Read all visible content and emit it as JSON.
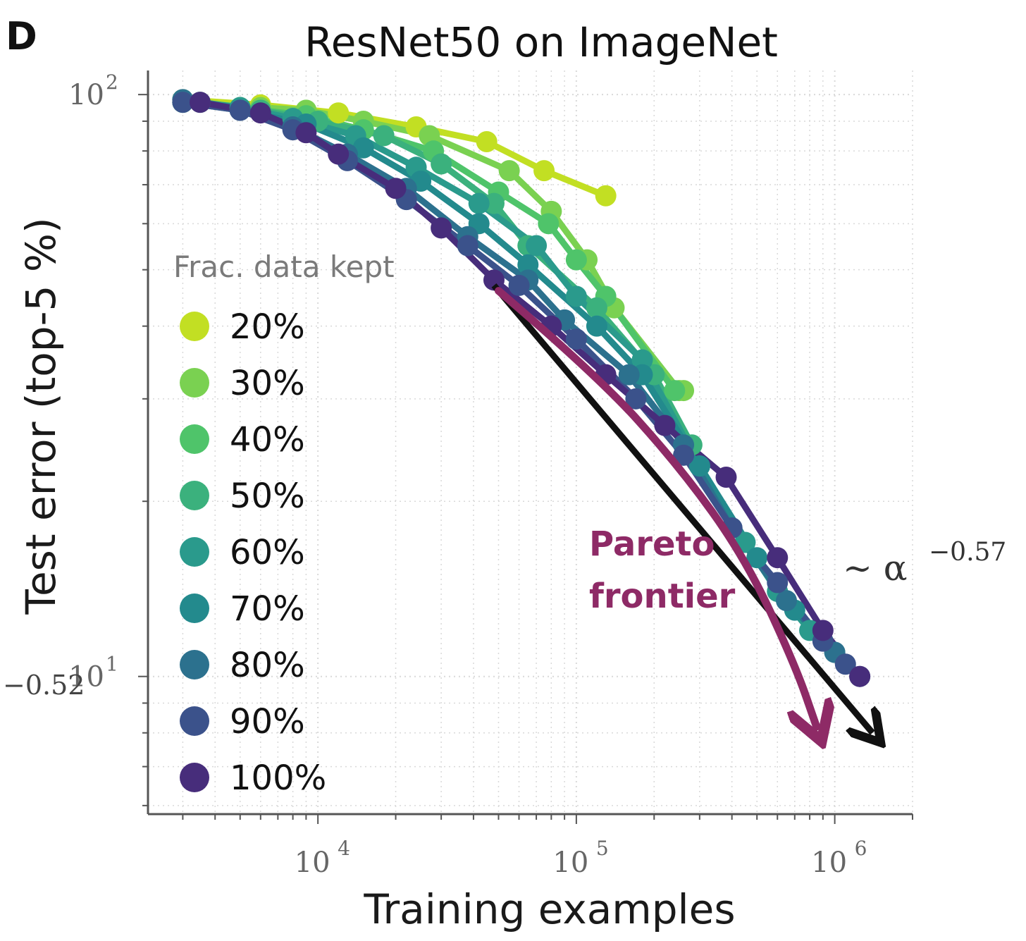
{
  "panel_letter": "D",
  "chart_data": {
    "type": "line",
    "title": "ResNet50 on ImageNet",
    "xlabel": "Training examples",
    "ylabel": "Test error (top-5 %)",
    "xscale": "log",
    "yscale": "log",
    "xlim": [
      2200,
      2000000
    ],
    "ylim": [
      5.8,
      110
    ],
    "grid": true,
    "x_ticks": [
      {
        "base": "10",
        "exp": "4",
        "value": 10000
      },
      {
        "base": "10",
        "exp": "5",
        "value": 100000
      },
      {
        "base": "10",
        "exp": "6",
        "value": 1000000
      }
    ],
    "y_ticks": [
      {
        "base": "10",
        "exp": "2",
        "value": 100
      },
      {
        "base": "10",
        "exp": "1",
        "value": 10
      }
    ],
    "legend": {
      "title": "Frac. data kept",
      "placement": "left"
    },
    "series": [
      {
        "name": "20%",
        "color": "#c2df23",
        "x": [
          3000,
          6000,
          12000,
          24000,
          45000,
          75000,
          130000
        ],
        "y": [
          98,
          96,
          93,
          88,
          83,
          74,
          67
        ]
      },
      {
        "name": "30%",
        "color": "#7ad151",
        "x": [
          3000,
          6000,
          9000,
          15000,
          27000,
          55000,
          80000,
          110000,
          140000,
          250000,
          260000
        ],
        "y": [
          97,
          95,
          94,
          90,
          85,
          74,
          63,
          52,
          43,
          31,
          31
        ]
      },
      {
        "name": "40%",
        "color": "#4fc46a",
        "x": [
          3000,
          5000,
          9000,
          15000,
          28000,
          50000,
          78000,
          100000,
          130000,
          240000
        ],
        "y": [
          97,
          95,
          92,
          87,
          80,
          68,
          60,
          52,
          45,
          31
        ]
      },
      {
        "name": "50%",
        "color": "#3bb17d",
        "x": [
          3500,
          6000,
          10000,
          18000,
          30000,
          48000,
          65000,
          120000,
          200000,
          280000
        ],
        "y": [
          97,
          94,
          90,
          85,
          76,
          65,
          55,
          43,
          33,
          25
        ]
      },
      {
        "name": "60%",
        "color": "#2a9a8c",
        "x": [
          3000,
          5000,
          8000,
          14000,
          24000,
          42000,
          70000,
          100000,
          180000,
          300000,
          450000,
          600000,
          800000
        ],
        "y": [
          98,
          95,
          91,
          85,
          75,
          65,
          55,
          45,
          35,
          23,
          17,
          14,
          12
        ]
      },
      {
        "name": "70%",
        "color": "#238a8d",
        "x": [
          3000,
          5000,
          9000,
          15000,
          25000,
          42000,
          65000,
          120000,
          180000,
          300000,
          500000,
          700000,
          1000000
        ],
        "y": [
          97,
          94,
          89,
          81,
          71,
          60,
          51,
          40,
          33,
          23,
          16,
          13,
          11
        ]
      },
      {
        "name": "80%",
        "color": "#2c718e",
        "x": [
          3000,
          5000,
          8000,
          13000,
          22000,
          38000,
          65000,
          90000,
          160000,
          260000,
          400000,
          650000,
          1000000,
          1250000
        ],
        "y": [
          98,
          94,
          88,
          79,
          69,
          57,
          48,
          41,
          33,
          25,
          18,
          13.5,
          11,
          10
        ]
      },
      {
        "name": "90%",
        "color": "#3b528b",
        "x": [
          3000,
          5000,
          8000,
          13000,
          22000,
          38000,
          60000,
          100000,
          170000,
          260000,
          400000,
          600000,
          900000,
          1100000
        ],
        "y": [
          97,
          94,
          87,
          77,
          66,
          55,
          47,
          38,
          30,
          24,
          18,
          14.5,
          11.5,
          10.5
        ]
      },
      {
        "name": "100%",
        "color": "#472d7b",
        "x": [
          3500,
          6000,
          9000,
          12000,
          20000,
          30000,
          48000,
          80000,
          130000,
          220000,
          380000,
          600000,
          900000,
          1250000
        ],
        "y": [
          97,
          93,
          86,
          79,
          69,
          59,
          48,
          40,
          33,
          27,
          22,
          16,
          12,
          10
        ]
      }
    ],
    "annotations": [
      {
        "id": "pareto",
        "lines": [
          "Pareto",
          "frontier"
        ],
        "color": "#8e2a66"
      },
      {
        "id": "power_law",
        "symbol": "∼ α",
        "exp": "−0.57",
        "color": "#111111"
      },
      {
        "id": "side_exponent",
        "text": "−0.52"
      }
    ],
    "pareto_curve": {
      "x": [
        50000,
        120000,
        250000,
        450000,
        700000,
        850000
      ],
      "y": [
        46,
        33,
        23,
        16,
        10.5,
        8.2
      ]
    },
    "power_line": {
      "x": [
        48000,
        1400000
      ],
      "y": [
        47,
        8
      ]
    }
  }
}
